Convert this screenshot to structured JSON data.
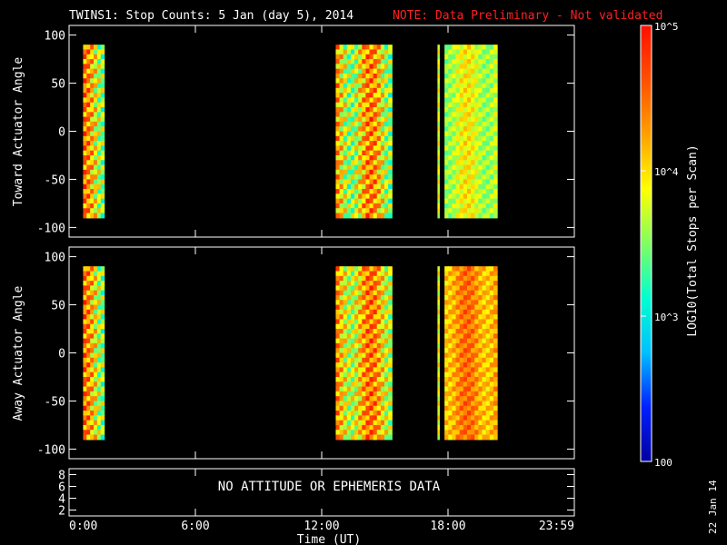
{
  "header": {
    "title": "TWINS1: Stop Counts:  5 Jan (day   5), 2014",
    "note": "NOTE: Data Preliminary - Not validated",
    "note_color": "#ff2020"
  },
  "footer": {
    "xlabel": "Time (UT)",
    "date_stamp": "22 Jan 14"
  },
  "chart_data": [
    {
      "type": "heatmap",
      "ylabel": "Toward Actuator Angle",
      "ylim": [
        -110,
        110
      ],
      "yticks": [
        100,
        50,
        0,
        -50,
        -100
      ],
      "xticks": [
        "0:00",
        "6:00",
        "12:00",
        "18:00",
        "23:59"
      ],
      "xlim_hours": [
        0,
        24
      ],
      "y_data_range": [
        -90,
        90
      ],
      "data_blocks": [
        {
          "start": "0:40",
          "end": "1:40",
          "value_range": [
            3.0,
            5.0
          ]
        },
        {
          "start": "12:40",
          "end": "15:20",
          "value_range": [
            3.0,
            5.0
          ]
        },
        {
          "start": "17:30",
          "end": "17:35",
          "value_range": [
            3.4,
            4.4
          ]
        },
        {
          "start": "17:50",
          "end": "20:20",
          "value_range": [
            3.3,
            4.2
          ]
        }
      ]
    },
    {
      "type": "heatmap",
      "ylabel": "Away Actuator Angle",
      "ylim": [
        -110,
        110
      ],
      "yticks": [
        100,
        50,
        0,
        -50,
        -100
      ],
      "xticks": [
        "0:00",
        "6:00",
        "12:00",
        "18:00",
        "23:59"
      ],
      "xlim_hours": [
        0,
        24
      ],
      "y_data_range": [
        -90,
        90
      ],
      "data_blocks": [
        {
          "start": "0:40",
          "end": "1:40",
          "value_range": [
            3.0,
            5.0
          ]
        },
        {
          "start": "12:40",
          "end": "15:20",
          "value_range": [
            3.2,
            5.0
          ]
        },
        {
          "start": "17:30",
          "end": "17:35",
          "value_range": [
            3.4,
            4.5
          ]
        },
        {
          "start": "17:50",
          "end": "20:20",
          "value_range": [
            3.8,
            4.8
          ]
        }
      ]
    },
    {
      "type": "line",
      "yticks": [
        8,
        6,
        4,
        2
      ],
      "ylim": [
        1,
        9
      ],
      "message": "NO ATTITUDE OR EPHEMERIS DATA"
    }
  ],
  "colorbar": {
    "label": "LOG10(Total Stops per Scan)",
    "scale": "log",
    "range": [
      100,
      100000
    ],
    "ticks": [
      "10^5",
      "10^4",
      "10^3",
      "100"
    ],
    "colors": [
      "#0000a0",
      "#0020ff",
      "#00c0ff",
      "#00ffd0",
      "#80ff60",
      "#ffff00",
      "#ffa000",
      "#ff5000",
      "#ff1000"
    ]
  }
}
